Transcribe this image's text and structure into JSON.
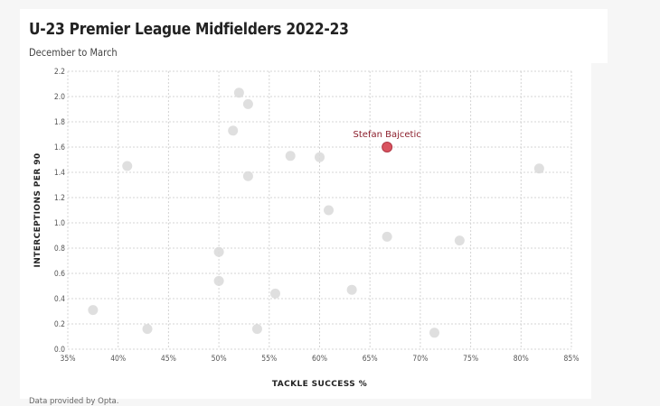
{
  "title": "U-23 Premier League Midfielders 2022-23",
  "subtitle": "December to March",
  "footnote": "Data provided by Opta.",
  "colors": {
    "point": "#d9d9d9",
    "highlight": "#d9535f",
    "highlight_label": "#8b1e2b"
  },
  "chart_data": {
    "type": "scatter",
    "xlabel": "TACKLE SUCCESS %",
    "ylabel": "INTERCEPTIONS PER 90",
    "xlim": [
      35,
      85
    ],
    "ylim": [
      0,
      2.2
    ],
    "xticks": [
      35,
      40,
      45,
      50,
      55,
      60,
      65,
      70,
      75,
      80,
      85
    ],
    "xtick_labels": [
      "35%",
      "40%",
      "45%",
      "50%",
      "55%",
      "60%",
      "65%",
      "70%",
      "75%",
      "80%",
      "85%"
    ],
    "yticks": [
      0,
      0.2,
      0.4,
      0.6,
      0.8,
      1.0,
      1.2,
      1.4,
      1.6,
      1.8,
      2.0,
      2.2
    ],
    "ytick_labels": [
      "0.0",
      "0.2",
      "0.4",
      "0.6",
      "0.8",
      "1.0",
      "1.2",
      "1.4",
      "1.6",
      "1.8",
      "2.0",
      "2.2"
    ],
    "grid": true,
    "points": [
      {
        "x": 37.5,
        "y": 0.31
      },
      {
        "x": 40.9,
        "y": 1.45
      },
      {
        "x": 42.9,
        "y": 0.16
      },
      {
        "x": 50.0,
        "y": 0.77
      },
      {
        "x": 50.0,
        "y": 0.54
      },
      {
        "x": 51.4,
        "y": 1.73
      },
      {
        "x": 52.0,
        "y": 2.03
      },
      {
        "x": 52.9,
        "y": 1.94
      },
      {
        "x": 52.9,
        "y": 1.37
      },
      {
        "x": 53.8,
        "y": 0.16
      },
      {
        "x": 55.6,
        "y": 0.44
      },
      {
        "x": 57.1,
        "y": 1.53
      },
      {
        "x": 60.0,
        "y": 1.52
      },
      {
        "x": 60.9,
        "y": 1.1
      },
      {
        "x": 63.2,
        "y": 0.47
      },
      {
        "x": 66.7,
        "y": 0.89
      },
      {
        "x": 71.4,
        "y": 0.13
      },
      {
        "x": 73.9,
        "y": 0.86
      },
      {
        "x": 81.8,
        "y": 1.43
      }
    ],
    "highlight": {
      "label": "Stefan Bajcetic",
      "x": 66.7,
      "y": 1.6
    }
  }
}
